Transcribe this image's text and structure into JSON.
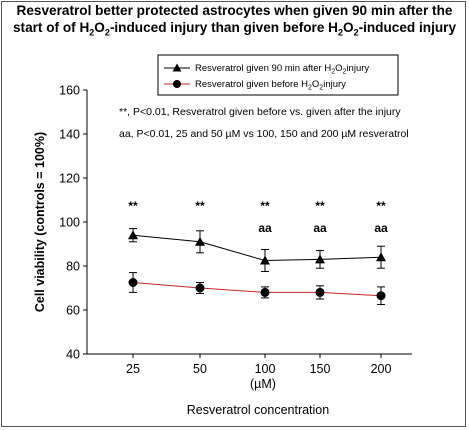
{
  "title_line1": "Resveratrol better protected astrocytes when given 90 min after the",
  "title_line2_a": "start of of H",
  "title_line2_b": "O",
  "title_line2_c": "-induced injury than given before H",
  "title_line2_d": "O",
  "title_line2_e": "-induced injury",
  "title_sub": "2",
  "annotation1": "**, P<0.01, Resveratrol given before vs. given after the injury",
  "annotation2": "aa, P<0.01, 25 and 50 µM vs 100, 150 and 200 µM resveratrol",
  "legend": {
    "s1_a": "Resveratrol given 90 min after H",
    "s1_b": "O",
    "s1_c": "injury",
    "s2_a": "Resveratrol given before H",
    "s2_b": "O",
    "s2_c": "injury"
  },
  "colors": {
    "series1": "#000000",
    "series2": "#cc2222"
  },
  "chart_data": {
    "type": "line",
    "categories": [
      "25",
      "50",
      "100",
      "150",
      "200"
    ],
    "unit_label": "(µM)",
    "xlabel": "Resveratrol concentration",
    "ylabel": "Cell viability (controls = 100%)",
    "ylim": [
      40,
      160
    ],
    "yticks": [
      "40",
      "60",
      "80",
      "100",
      "120",
      "140",
      "160"
    ],
    "series": [
      {
        "name": "Resveratrol given 90 min after H2O2 injury",
        "values": [
          94,
          91,
          82.5,
          83,
          84
        ],
        "errors": [
          3,
          5,
          5,
          4,
          5
        ],
        "marker": "triangle"
      },
      {
        "name": "Resveratrol given before H2O2 injury",
        "values": [
          72.5,
          70,
          68,
          68,
          66.5
        ],
        "errors": [
          4.5,
          2.5,
          2.5,
          3,
          4
        ],
        "marker": "circle"
      }
    ],
    "stars": [
      "**",
      "**",
      "**",
      "**",
      "**"
    ],
    "aa_marks": [
      "",
      "",
      "aa",
      "aa",
      "aa"
    ]
  }
}
